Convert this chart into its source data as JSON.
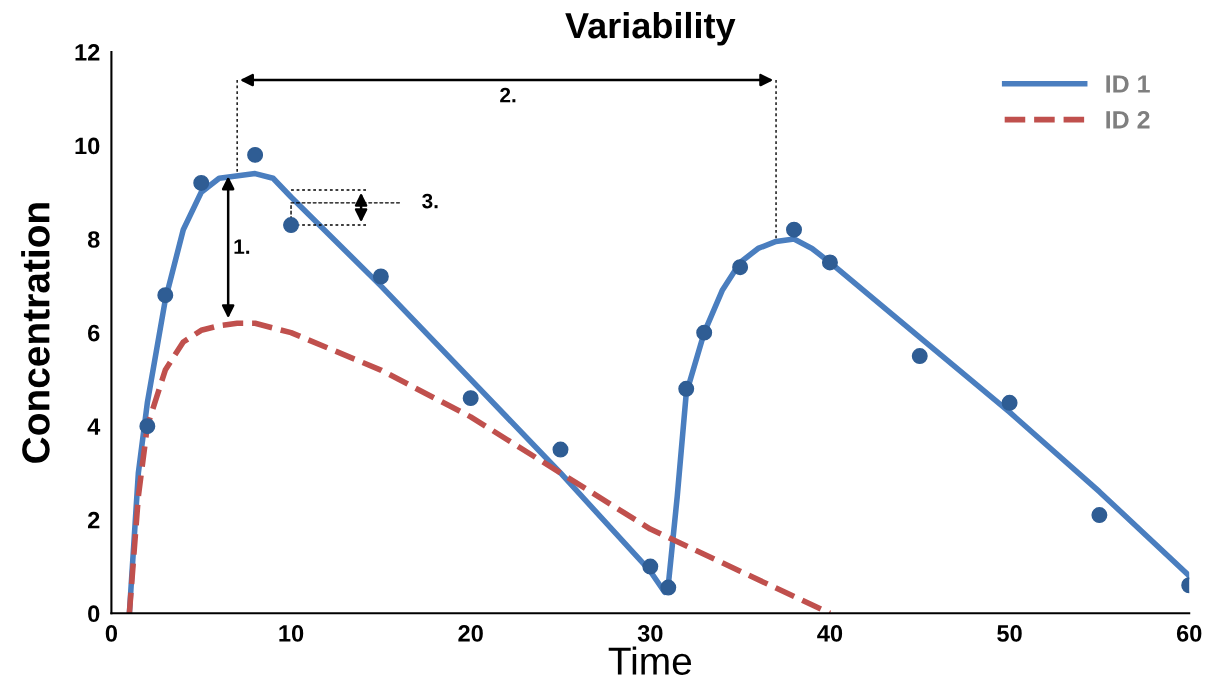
{
  "chart_data": {
    "type": "line",
    "title": "Variability",
    "xlabel": "Time",
    "ylabel": "Concentration",
    "xlim": [
      0,
      60
    ],
    "xticks": [
      0,
      10,
      20,
      30,
      40,
      50,
      60
    ],
    "ylim": [
      0,
      12
    ],
    "yticks": [
      0,
      2,
      4,
      6,
      8,
      10,
      12
    ],
    "grid": false,
    "legend": "top right",
    "marker": "none",
    "series": [
      {
        "name": "ID 1",
        "color": "#4a7ebf",
        "line_style": "solid",
        "x": [
          1,
          1.5,
          2,
          3,
          4,
          5,
          6,
          8,
          9,
          10,
          15,
          20,
          25,
          30,
          30.8,
          31,
          31.5,
          32,
          33,
          34,
          35,
          36,
          37,
          38,
          39,
          40,
          45,
          50,
          55,
          60
        ],
        "values": [
          0,
          3,
          4.5,
          6.7,
          8.2,
          9.0,
          9.3,
          9.4,
          9.3,
          8.9,
          7.0,
          5.0,
          3.0,
          0.9,
          0.45,
          0.6,
          2.5,
          4.7,
          6.0,
          6.9,
          7.5,
          7.8,
          7.95,
          8.0,
          7.8,
          7.5,
          5.9,
          4.3,
          2.6,
          0.8
        ]
      },
      {
        "name": "ID 2",
        "color": "#c0504d",
        "line_style": "dashed",
        "x": [
          1,
          1.5,
          2,
          3,
          4,
          5,
          6,
          7,
          8,
          9,
          10,
          15,
          20,
          25,
          30,
          35,
          40
        ],
        "values": [
          0,
          2.5,
          4.0,
          5.2,
          5.8,
          6.05,
          6.15,
          6.2,
          6.2,
          6.1,
          6.0,
          5.2,
          4.2,
          3.0,
          1.8,
          0.9,
          0
        ]
      },
      {
        "type": "scatter",
        "color": "#2f5d94",
        "marker": "circle",
        "x": [
          2,
          3,
          5,
          8,
          10,
          15,
          20,
          25,
          30,
          31,
          32,
          33,
          35,
          38,
          40,
          45,
          50,
          55,
          60
        ],
        "values": [
          4,
          6.8,
          9.2,
          9.8,
          8.3,
          7.2,
          4.6,
          3.5,
          1.0,
          0.55,
          4.8,
          6.0,
          7.4,
          8.2,
          7.5,
          5.5,
          4.5,
          2.1,
          0.6
        ]
      }
    ],
    "annotations": [
      "1.",
      "2.",
      {
        "text": "3.",
        "x": 10,
        "y": 8.3
      }
    ]
  }
}
